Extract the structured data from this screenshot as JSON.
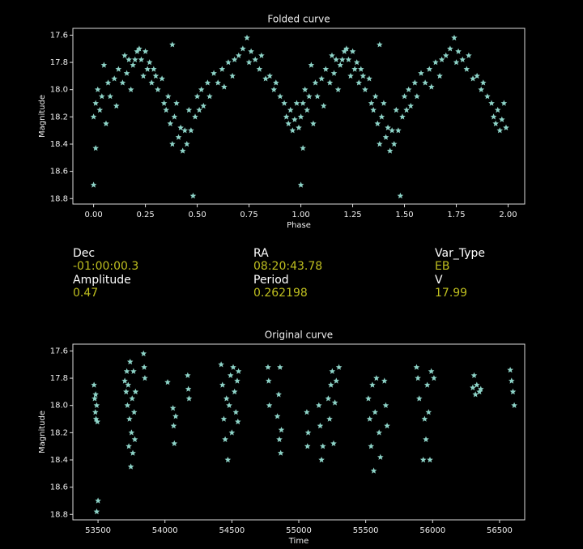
{
  "chart_data": [
    {
      "type": "scatter",
      "title": "Folded curve",
      "x_label": "Phase",
      "y_label": "Magnitude",
      "color": "#8dd3c7",
      "xlim": [
        -0.1,
        2.08
      ],
      "ylim": [
        18.84,
        17.55
      ],
      "xticks": [
        {
          "value": 0,
          "label": "0.00"
        },
        {
          "value": 0.25,
          "label": "0.25"
        },
        {
          "value": 0.5,
          "label": "0.50"
        },
        {
          "value": 0.75,
          "label": "0.75"
        },
        {
          "value": 1,
          "label": "1.00"
        },
        {
          "value": 1.25,
          "label": "1.25"
        },
        {
          "value": 1.5,
          "label": "1.50"
        },
        {
          "value": 1.75,
          "label": "1.75"
        },
        {
          "value": 2,
          "label": "2.00"
        }
      ],
      "yticks": [
        17.6,
        17.8,
        {
          "value": 18,
          "label": "18.0"
        },
        18.2,
        18.4,
        18.6,
        18.8
      ],
      "x": [
        0.0,
        0.0,
        0.01,
        0.01,
        0.02,
        0.03,
        0.04,
        0.05,
        0.06,
        0.07,
        0.08,
        0.1,
        0.11,
        0.12,
        0.14,
        0.15,
        0.16,
        0.17,
        0.18,
        0.19,
        0.2,
        0.21,
        0.22,
        0.23,
        0.24,
        0.25,
        0.26,
        0.27,
        0.28,
        0.29,
        0.3,
        0.31,
        0.33,
        0.34,
        0.35,
        0.36,
        0.37,
        0.38,
        0.38,
        0.39,
        0.4,
        0.41,
        0.42,
        0.43,
        0.44,
        0.45,
        0.46,
        0.47,
        0.48,
        0.49,
        0.5,
        0.51,
        0.52,
        0.53,
        0.55,
        0.56,
        0.58,
        0.6,
        0.62,
        0.63,
        0.65,
        0.67,
        0.68,
        0.7,
        0.72,
        0.74,
        0.75,
        0.76,
        0.78,
        0.8,
        0.81,
        0.83,
        0.85,
        0.87,
        0.88,
        0.9,
        0.92,
        0.93,
        0.94,
        0.95,
        0.96,
        0.97,
        0.98,
        0.99,
        1.0,
        1.0,
        1.01,
        1.01,
        1.02,
        1.03,
        1.04,
        1.05,
        1.06,
        1.07,
        1.08,
        1.1,
        1.11,
        1.12,
        1.14,
        1.15,
        1.16,
        1.17,
        1.18,
        1.19,
        1.2,
        1.21,
        1.22,
        1.23,
        1.24,
        1.25,
        1.26,
        1.27,
        1.28,
        1.29,
        1.3,
        1.31,
        1.33,
        1.34,
        1.35,
        1.36,
        1.37,
        1.38,
        1.38,
        1.39,
        1.4,
        1.41,
        1.42,
        1.43,
        1.44,
        1.45,
        1.46,
        1.47,
        1.48,
        1.49,
        1.5,
        1.51,
        1.52,
        1.53,
        1.55,
        1.56,
        1.58,
        1.6,
        1.62,
        1.63,
        1.65,
        1.67,
        1.68,
        1.7,
        1.72,
        1.74,
        1.75,
        1.76,
        1.78,
        1.8,
        1.81,
        1.83,
        1.85,
        1.87,
        1.88,
        1.9,
        1.92,
        1.93,
        1.94,
        1.95,
        1.96,
        1.97,
        1.98,
        1.99
      ],
      "values": [
        18.7,
        18.2,
        18.43,
        18.1,
        18.0,
        18.15,
        18.05,
        17.82,
        18.25,
        17.95,
        18.05,
        17.92,
        18.12,
        17.85,
        17.95,
        17.75,
        17.88,
        17.78,
        18.0,
        17.82,
        17.78,
        17.72,
        17.7,
        17.78,
        17.9,
        17.72,
        17.85,
        17.8,
        17.95,
        17.85,
        17.9,
        18.0,
        17.92,
        18.1,
        18.15,
        18.05,
        18.25,
        17.67,
        18.4,
        18.2,
        18.1,
        18.35,
        18.28,
        18.45,
        18.3,
        18.4,
        18.15,
        18.3,
        18.78,
        18.2,
        18.05,
        18.15,
        18.0,
        18.12,
        17.95,
        18.05,
        17.88,
        17.95,
        17.85,
        17.98,
        17.8,
        17.9,
        17.78,
        17.75,
        17.7,
        17.62,
        17.8,
        17.72,
        17.78,
        17.85,
        17.75,
        17.92,
        17.9,
        18.0,
        17.95,
        18.05,
        18.1,
        18.2,
        18.25,
        18.15,
        18.3,
        18.22,
        18.1,
        18.28,
        18.7,
        18.2,
        18.43,
        18.1,
        18.0,
        18.15,
        18.05,
        17.82,
        18.25,
        17.95,
        18.05,
        17.92,
        18.12,
        17.85,
        17.95,
        17.75,
        17.88,
        17.78,
        18.0,
        17.82,
        17.78,
        17.72,
        17.7,
        17.78,
        17.9,
        17.72,
        17.85,
        17.8,
        17.95,
        17.85,
        17.9,
        18.0,
        17.92,
        18.1,
        18.15,
        18.05,
        18.25,
        17.67,
        18.4,
        18.2,
        18.1,
        18.35,
        18.28,
        18.45,
        18.3,
        18.4,
        18.15,
        18.3,
        18.78,
        18.2,
        18.05,
        18.15,
        18.0,
        18.12,
        17.95,
        18.05,
        17.88,
        17.95,
        17.85,
        17.98,
        17.8,
        17.9,
        17.78,
        17.75,
        17.7,
        17.62,
        17.8,
        17.72,
        17.78,
        17.85,
        17.75,
        17.92,
        17.9,
        18.0,
        17.95,
        18.05,
        18.1,
        18.2,
        18.25,
        18.15,
        18.3,
        18.22,
        18.1,
        18.28
      ]
    },
    {
      "type": "scatter",
      "title": "Original curve",
      "x_label": "Time",
      "y_label": "Magnitude",
      "color": "#8dd3c7",
      "xlim": [
        53312,
        56688
      ],
      "ylim": [
        18.84,
        17.55
      ],
      "xticks": [
        53500,
        54000,
        54500,
        55000,
        55500,
        56000,
        56500
      ],
      "yticks": [
        17.6,
        17.8,
        {
          "value": 18,
          "label": "18.0"
        },
        18.2,
        18.4,
        18.6,
        18.8
      ],
      "x": [
        53470,
        53475,
        53480,
        53482,
        53485,
        53490,
        53495,
        53500,
        53490,
        53700,
        53710,
        53715,
        53720,
        53725,
        53730,
        53735,
        53740,
        53745,
        53750,
        53755,
        53760,
        53765,
        53770,
        53775,
        53780,
        53840,
        53845,
        53850,
        54020,
        54060,
        54065,
        54070,
        54080,
        54170,
        54175,
        54180,
        54420,
        54430,
        54440,
        54450,
        54460,
        54470,
        54480,
        54490,
        54500,
        54510,
        54520,
        54530,
        54540,
        54545,
        54550,
        54770,
        54775,
        54780,
        54840,
        54850,
        54855,
        54860,
        54865,
        54870,
        55060,
        55065,
        55070,
        55150,
        55160,
        55170,
        55180,
        55220,
        55230,
        55240,
        55250,
        55260,
        55270,
        55280,
        55300,
        55520,
        55530,
        55540,
        55550,
        55560,
        55570,
        55580,
        55600,
        55610,
        55640,
        55650,
        55660,
        55880,
        55890,
        55900,
        55930,
        55940,
        55950,
        55960,
        55970,
        55980,
        55990,
        56010,
        56300,
        56310,
        56320,
        56330,
        56350,
        56360,
        56580,
        56590,
        56600,
        56610
      ],
      "values": [
        17.85,
        17.95,
        18.05,
        17.92,
        18.1,
        18.0,
        18.12,
        18.7,
        18.78,
        17.82,
        17.9,
        17.75,
        18.0,
        17.85,
        18.3,
        18.1,
        17.68,
        18.45,
        18.2,
        17.95,
        18.35,
        17.75,
        18.05,
        18.25,
        17.9,
        17.62,
        17.72,
        17.8,
        17.83,
        18.02,
        18.15,
        18.28,
        18.08,
        17.78,
        17.88,
        17.95,
        17.7,
        17.85,
        18.1,
        18.25,
        17.95,
        18.4,
        18.0,
        17.78,
        18.2,
        17.72,
        17.9,
        18.05,
        17.82,
        18.12,
        17.75,
        17.72,
        17.82,
        18.0,
        18.08,
        17.92,
        18.25,
        17.72,
        18.35,
        18.18,
        18.05,
        18.3,
        18.2,
        18.0,
        18.15,
        18.4,
        18.3,
        17.95,
        18.1,
        17.85,
        17.75,
        18.28,
        17.98,
        17.82,
        17.72,
        17.95,
        18.1,
        18.3,
        17.85,
        18.48,
        18.05,
        17.8,
        18.2,
        18.38,
        17.82,
        18.0,
        18.15,
        17.72,
        17.8,
        17.95,
        18.4,
        18.1,
        18.25,
        17.85,
        18.05,
        18.4,
        17.75,
        17.8,
        17.87,
        17.78,
        17.92,
        17.85,
        17.9,
        17.88,
        17.74,
        17.82,
        17.9,
        18.0
      ]
    }
  ],
  "info": {
    "items": [
      {
        "label": "Dec",
        "value": "-01:00:00.3"
      },
      {
        "label": "RA",
        "value": "08:20:43.78"
      },
      {
        "label": "Var_Type",
        "value": "EB"
      },
      {
        "label": "Amplitude",
        "value": "0.47"
      },
      {
        "label": "Period",
        "value": "0.262198"
      },
      {
        "label": "V",
        "value": "17.99"
      }
    ]
  }
}
